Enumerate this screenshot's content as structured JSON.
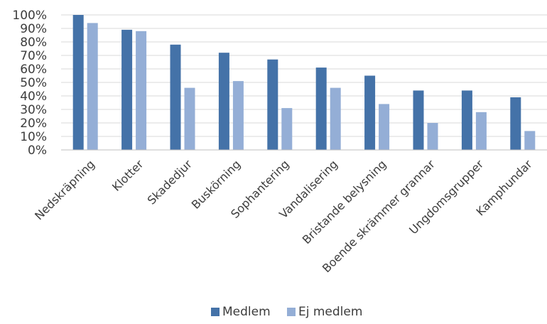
{
  "chart_data": {
    "type": "bar",
    "categories": [
      "Nedskräpning",
      "Klotter",
      "Skadedjur",
      "Buskörning",
      "Sophantering",
      "Vandalisering",
      "Bristande belysning",
      "Boende skrämmer grannar",
      "Ungdomsgrupper",
      "Kamphundar"
    ],
    "series": [
      {
        "name": "Medlem",
        "values": [
          100,
          89,
          78,
          72,
          67,
          61,
          55,
          44,
          44,
          39
        ],
        "color": "#4472a8"
      },
      {
        "name": "Ej medlem",
        "values": [
          94,
          88,
          46,
          51,
          31,
          46,
          34,
          20,
          28,
          14
        ],
        "color": "#94aed6"
      }
    ],
    "yticks": [
      "0%",
      "10%",
      "20%",
      "30%",
      "40%",
      "50%",
      "60%",
      "70%",
      "80%",
      "90%",
      "100%"
    ],
    "ylim": [
      0,
      100
    ],
    "grid": true,
    "legend_position": "bottom"
  }
}
